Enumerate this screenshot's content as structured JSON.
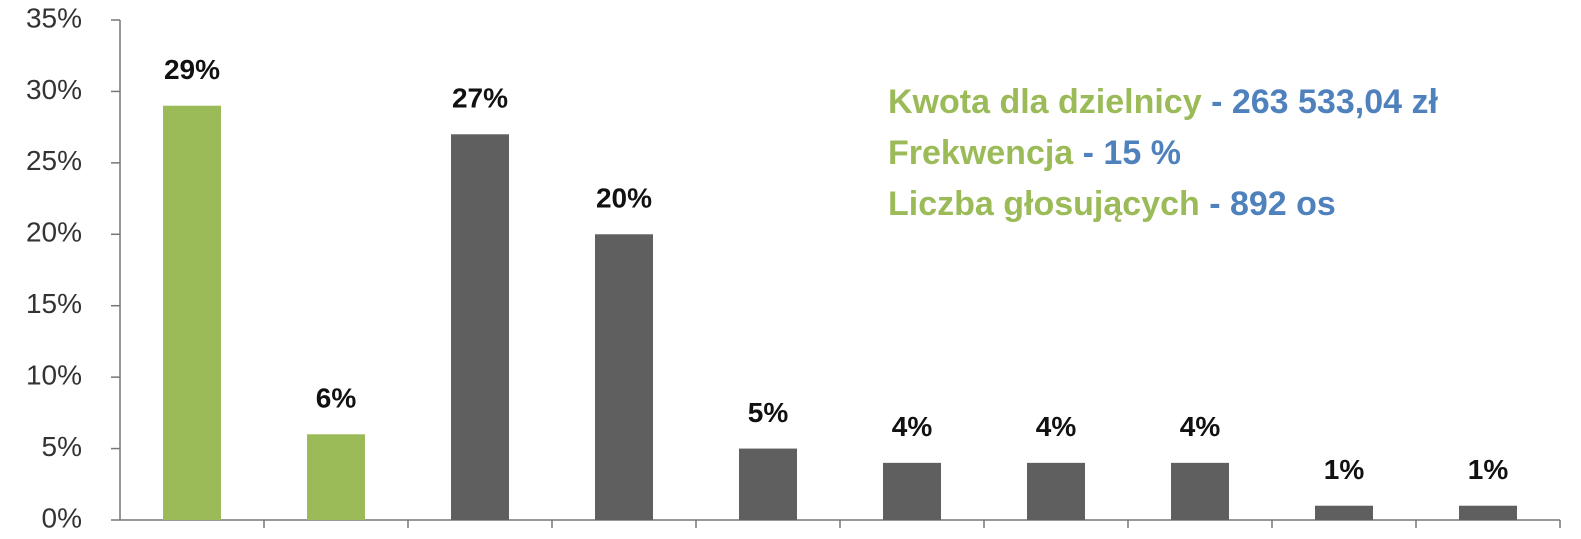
{
  "chart_data": {
    "type": "bar",
    "categories": [
      null,
      null,
      null,
      null,
      null,
      null,
      null,
      null,
      null,
      null
    ],
    "values": [
      29,
      6,
      27,
      20,
      5,
      4,
      4,
      4,
      1,
      1
    ],
    "value_labels": [
      "29%",
      "6%",
      "27%",
      "20%",
      "5%",
      "4%",
      "4%",
      "4%",
      "1%",
      "1%"
    ],
    "colors": [
      "#9bbb59",
      "#9bbb59",
      "#5f5f5f",
      "#5f5f5f",
      "#5f5f5f",
      "#5f5f5f",
      "#5f5f5f",
      "#5f5f5f",
      "#5f5f5f",
      "#5f5f5f"
    ],
    "ylim": [
      0,
      35
    ],
    "yticks": [
      {
        "value": 0,
        "label": "0%"
      },
      {
        "value": 5,
        "label": "5%"
      },
      {
        "value": 10,
        "label": "10%"
      },
      {
        "value": 15,
        "label": "15%"
      },
      {
        "value": 20,
        "label": "20%"
      },
      {
        "value": 25,
        "label": "25%"
      },
      {
        "value": 30,
        "label": "30%"
      },
      {
        "value": 35,
        "label": "35%"
      }
    ],
    "grid": false,
    "annotations": [
      {
        "label": "Kwota dla dzielnicy",
        "value": " - 263 533,04 zł"
      },
      {
        "label": "Frekwencja",
        "value": " - 15 %"
      },
      {
        "label": "Liczba głosujących",
        "value": " - 892 os"
      }
    ],
    "annotation_colors": {
      "label": "#9bbb59",
      "value": "#4f81bd"
    }
  }
}
